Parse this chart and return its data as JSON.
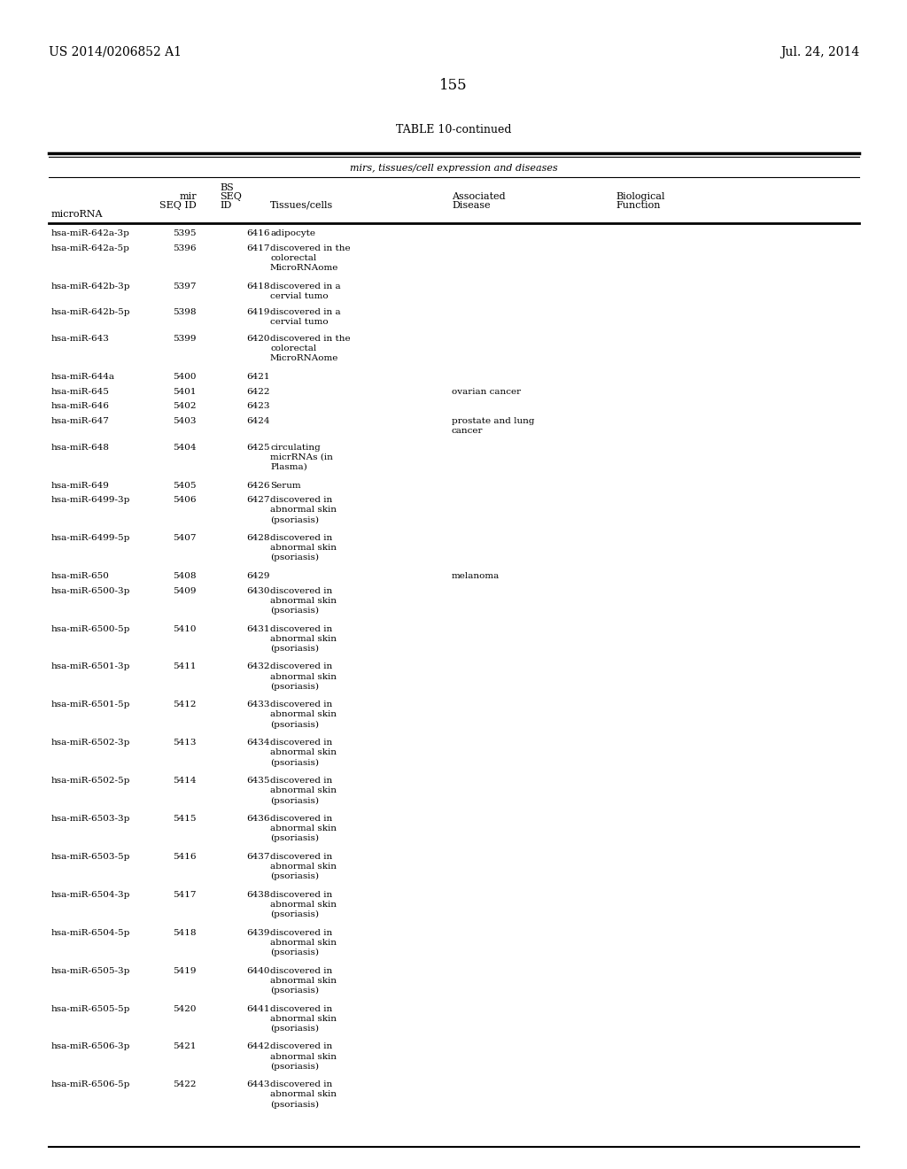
{
  "page_left": "US 2014/0206852 A1",
  "page_right": "Jul. 24, 2014",
  "page_number": "155",
  "table_title": "TABLE 10-continued",
  "subheader": "mirs, tissues/cell expression and diseases",
  "rows": [
    [
      "hsa-miR-642a-3p",
      "5395",
      "6416",
      "adipocyte",
      "",
      ""
    ],
    [
      "hsa-miR-642a-5p",
      "5396",
      "6417",
      "discovered in the\ncolorectal\nMicroRNAome",
      "",
      ""
    ],
    [
      "hsa-miR-642b-3p",
      "5397",
      "6418",
      "discovered in a\ncervial tumo",
      "",
      ""
    ],
    [
      "hsa-miR-642b-5p",
      "5398",
      "6419",
      "discovered in a\ncervial tumo",
      "",
      ""
    ],
    [
      "hsa-miR-643",
      "5399",
      "6420",
      "discovered in the\ncolorectal\nMicroRNAome",
      "",
      ""
    ],
    [
      "hsa-miR-644a",
      "5400",
      "6421",
      "",
      "",
      ""
    ],
    [
      "hsa-miR-645",
      "5401",
      "6422",
      "",
      "ovarian cancer",
      ""
    ],
    [
      "hsa-miR-646",
      "5402",
      "6423",
      "",
      "",
      ""
    ],
    [
      "hsa-miR-647",
      "5403",
      "6424",
      "",
      "prostate and lung\ncancer",
      ""
    ],
    [
      "hsa-miR-648",
      "5404",
      "6425",
      "circulating\nmicrRNAs (in\nPlasma)",
      "",
      ""
    ],
    [
      "hsa-miR-649",
      "5405",
      "6426",
      "Serum",
      "",
      ""
    ],
    [
      "hsa-miR-6499-3p",
      "5406",
      "6427",
      "discovered in\nabnormal skin\n(psoriasis)",
      "",
      ""
    ],
    [
      "hsa-miR-6499-5p",
      "5407",
      "6428",
      "discovered in\nabnormal skin\n(psoriasis)",
      "",
      ""
    ],
    [
      "hsa-miR-650",
      "5408",
      "6429",
      "",
      "melanoma",
      ""
    ],
    [
      "hsa-miR-6500-3p",
      "5409",
      "6430",
      "discovered in\nabnormal skin\n(psoriasis)",
      "",
      ""
    ],
    [
      "hsa-miR-6500-5p",
      "5410",
      "6431",
      "discovered in\nabnormal skin\n(psoriasis)",
      "",
      ""
    ],
    [
      "hsa-miR-6501-3p",
      "5411",
      "6432",
      "discovered in\nabnormal skin\n(psoriasis)",
      "",
      ""
    ],
    [
      "hsa-miR-6501-5p",
      "5412",
      "6433",
      "discovered in\nabnormal skin\n(psoriasis)",
      "",
      ""
    ],
    [
      "hsa-miR-6502-3p",
      "5413",
      "6434",
      "discovered in\nabnormal skin\n(psoriasis)",
      "",
      ""
    ],
    [
      "hsa-miR-6502-5p",
      "5414",
      "6435",
      "discovered in\nabnormal skin\n(psoriasis)",
      "",
      ""
    ],
    [
      "hsa-miR-6503-3p",
      "5415",
      "6436",
      "discovered in\nabnormal skin\n(psoriasis)",
      "",
      ""
    ],
    [
      "hsa-miR-6503-5p",
      "5416",
      "6437",
      "discovered in\nabnormal skin\n(psoriasis)",
      "",
      ""
    ],
    [
      "hsa-miR-6504-3p",
      "5417",
      "6438",
      "discovered in\nabnormal skin\n(psoriasis)",
      "",
      ""
    ],
    [
      "hsa-miR-6504-5p",
      "5418",
      "6439",
      "discovered in\nabnormal skin\n(psoriasis)",
      "",
      ""
    ],
    [
      "hsa-miR-6505-3p",
      "5419",
      "6440",
      "discovered in\nabnormal skin\n(psoriasis)",
      "",
      ""
    ],
    [
      "hsa-miR-6505-5p",
      "5420",
      "6441",
      "discovered in\nabnormal skin\n(psoriasis)",
      "",
      ""
    ],
    [
      "hsa-miR-6506-3p",
      "5421",
      "6442",
      "discovered in\nabnormal skin\n(psoriasis)",
      "",
      ""
    ],
    [
      "hsa-miR-6506-5p",
      "5422",
      "6443",
      "discovered in\nabnormal skin\n(psoriasis)",
      "",
      ""
    ]
  ],
  "background_color": "#ffffff",
  "text_color": "#000000"
}
